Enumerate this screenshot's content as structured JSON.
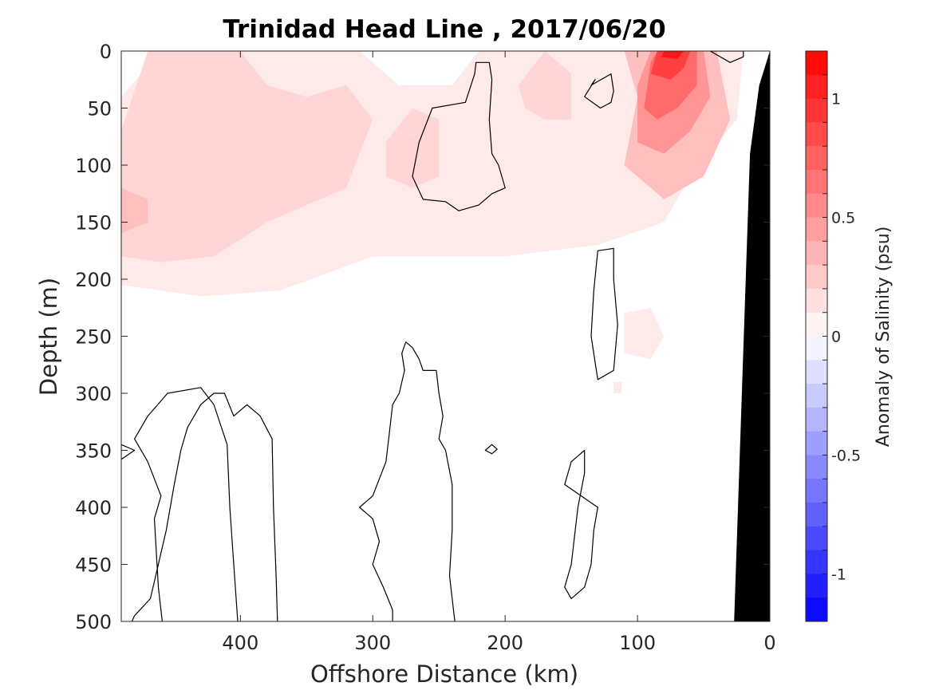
{
  "chart_data": {
    "type": "heatmap",
    "title": "Trinidad Head Line , 2017/06/20",
    "xlabel": "Offshore Distance (km)",
    "ylabel": "Depth (m)",
    "colorbar_label": "Anomaly of Salinity (psu)",
    "xlim": [
      490,
      0
    ],
    "ylim": [
      0,
      500
    ],
    "y_reversed": true,
    "x_reversed": true,
    "x_ticks": [
      400,
      300,
      200,
      100,
      0
    ],
    "y_ticks": [
      0,
      50,
      100,
      150,
      200,
      250,
      300,
      350,
      400,
      450,
      500
    ],
    "colorbar": {
      "range": [
        -1.2,
        1.2
      ],
      "step": 0.1,
      "ticks": [
        -1,
        -0.5,
        0,
        0.5,
        1
      ],
      "tick_labels": [
        "-1",
        "-0.5",
        "0",
        "0.5",
        "1"
      ],
      "colors": {
        "negative_max": "#0000ff",
        "zero": "#ffffff",
        "positive_max": "#ff0000"
      }
    },
    "anomaly_patches": [
      {
        "level": 0.1,
        "points": [
          [
            490,
            40
          ],
          [
            460,
            0
          ],
          [
            310,
            0
          ],
          [
            280,
            30
          ],
          [
            240,
            30
          ],
          [
            220,
            0
          ],
          [
            20,
            0
          ],
          [
            25,
            60
          ],
          [
            60,
            110
          ],
          [
            80,
            150
          ],
          [
            130,
            170
          ],
          [
            200,
            180
          ],
          [
            300,
            180
          ],
          [
            370,
            210
          ],
          [
            430,
            215
          ],
          [
            490,
            205
          ]
        ]
      },
      {
        "level": 0.2,
        "points": [
          [
            490,
            70
          ],
          [
            470,
            0
          ],
          [
            400,
            0
          ],
          [
            380,
            30
          ],
          [
            350,
            40
          ],
          [
            320,
            30
          ],
          [
            300,
            60
          ],
          [
            320,
            120
          ],
          [
            380,
            150
          ],
          [
            420,
            180
          ],
          [
            460,
            185
          ],
          [
            490,
            180
          ]
        ]
      },
      {
        "level": 0.2,
        "points": [
          [
            290,
            80
          ],
          [
            270,
            50
          ],
          [
            250,
            60
          ],
          [
            250,
            110
          ],
          [
            270,
            120
          ],
          [
            290,
            110
          ]
        ]
      },
      {
        "level": 0.2,
        "points": [
          [
            190,
            30
          ],
          [
            170,
            0
          ],
          [
            150,
            20
          ],
          [
            150,
            60
          ],
          [
            170,
            60
          ],
          [
            185,
            50
          ]
        ]
      },
      {
        "level": 0.3,
        "points": [
          [
            490,
            160
          ],
          [
            470,
            150
          ],
          [
            470,
            130
          ],
          [
            490,
            120
          ]
        ]
      },
      {
        "level": 0.3,
        "points": [
          [
            110,
            100
          ],
          [
            100,
            40
          ],
          [
            110,
            0
          ],
          [
            40,
            0
          ],
          [
            30,
            60
          ],
          [
            50,
            110
          ],
          [
            80,
            130
          ]
        ]
      },
      {
        "level": 0.5,
        "points": [
          [
            100,
            80
          ],
          [
            100,
            30
          ],
          [
            90,
            0
          ],
          [
            50,
            0
          ],
          [
            45,
            40
          ],
          [
            60,
            70
          ],
          [
            80,
            90
          ]
        ]
      },
      {
        "level": 0.7,
        "points": [
          [
            95,
            50
          ],
          [
            90,
            10
          ],
          [
            85,
            0
          ],
          [
            55,
            0
          ],
          [
            55,
            30
          ],
          [
            70,
            50
          ],
          [
            85,
            60
          ]
        ]
      },
      {
        "level": 0.9,
        "points": [
          [
            90,
            20
          ],
          [
            85,
            0
          ],
          [
            60,
            0
          ],
          [
            65,
            15
          ],
          [
            75,
            25
          ]
        ]
      },
      {
        "level": 1.1,
        "points": [
          [
            82,
            5
          ],
          [
            80,
            0
          ],
          [
            65,
            0
          ],
          [
            70,
            7
          ]
        ]
      },
      {
        "level": 0.1,
        "points": [
          [
            110,
            230
          ],
          [
            90,
            225
          ],
          [
            80,
            250
          ],
          [
            90,
            270
          ],
          [
            110,
            265
          ]
        ]
      },
      {
        "level": 0.1,
        "points": [
          [
            118,
            290
          ],
          [
            112,
            290
          ],
          [
            112,
            300
          ],
          [
            118,
            300
          ]
        ]
      }
    ],
    "zero_contours": [
      {
        "closed": true,
        "points": [
          [
            262,
            130
          ],
          [
            270,
            110
          ],
          [
            265,
            80
          ],
          [
            255,
            50
          ],
          [
            230,
            45
          ],
          [
            223,
            20
          ],
          [
            222,
            10
          ],
          [
            212,
            10
          ],
          [
            210,
            25
          ],
          [
            212,
            60
          ],
          [
            210,
            90
          ],
          [
            205,
            100
          ],
          [
            200,
            120
          ],
          [
            210,
            125
          ],
          [
            220,
            135
          ],
          [
            235,
            140
          ],
          [
            245,
            132
          ]
        ]
      },
      {
        "closed": true,
        "points": [
          [
            135,
            30
          ],
          [
            120,
            20
          ],
          [
            118,
            35
          ],
          [
            120,
            45
          ],
          [
            128,
            50
          ],
          [
            140,
            40
          ],
          [
            132,
            25
          ]
        ]
      },
      {
        "closed": true,
        "points": [
          [
            130,
            175
          ],
          [
            118,
            173
          ],
          [
            118,
            200
          ],
          [
            115,
            240
          ],
          [
            118,
            280
          ],
          [
            130,
            288
          ],
          [
            135,
            250
          ],
          [
            133,
            210
          ]
        ]
      },
      {
        "closed": false,
        "points": [
          [
            459,
            500
          ],
          [
            462,
            470
          ],
          [
            465,
            410
          ],
          [
            460,
            390
          ],
          [
            470,
            360
          ],
          [
            480,
            340
          ],
          [
            470,
            320
          ],
          [
            455,
            300
          ],
          [
            430,
            295
          ],
          [
            420,
            310
          ],
          [
            410,
            345
          ],
          [
            408,
            400
          ],
          [
            405,
            450
          ],
          [
            402,
            500
          ]
        ]
      },
      {
        "closed": false,
        "points": [
          [
            372,
            500
          ],
          [
            373,
            460
          ],
          [
            375,
            400
          ],
          [
            376,
            340
          ],
          [
            385,
            320
          ],
          [
            395,
            310
          ],
          [
            405,
            320
          ],
          [
            412,
            300
          ],
          [
            420,
            300
          ],
          [
            430,
            310
          ],
          [
            440,
            330
          ],
          [
            445,
            350
          ],
          [
            450,
            380
          ],
          [
            456,
            420
          ],
          [
            462,
            450
          ],
          [
            468,
            480
          ],
          [
            480,
            495
          ],
          [
            482,
            500
          ]
        ]
      },
      {
        "closed": false,
        "points": [
          [
            238,
            500
          ],
          [
            242,
            460
          ],
          [
            240,
            420
          ],
          [
            240,
            380
          ],
          [
            245,
            350
          ],
          [
            250,
            340
          ],
          [
            247,
            320
          ],
          [
            250,
            300
          ],
          [
            252,
            280
          ],
          [
            262,
            280
          ],
          [
            265,
            270
          ],
          [
            270,
            260
          ],
          [
            275,
            255
          ],
          [
            278,
            265
          ],
          [
            276,
            280
          ],
          [
            280,
            300
          ],
          [
            285,
            310
          ],
          [
            288,
            340
          ],
          [
            290,
            360
          ],
          [
            295,
            375
          ],
          [
            300,
            390
          ],
          [
            310,
            400
          ],
          [
            300,
            410
          ],
          [
            295,
            430
          ],
          [
            300,
            450
          ],
          [
            292,
            470
          ],
          [
            285,
            490
          ],
          [
            285,
            500
          ]
        ]
      },
      {
        "closed": true,
        "points": [
          [
            155,
            380
          ],
          [
            150,
            360
          ],
          [
            140,
            350
          ],
          [
            140,
            370
          ],
          [
            145,
            400
          ],
          [
            148,
            430
          ],
          [
            150,
            450
          ],
          [
            155,
            470
          ],
          [
            150,
            480
          ],
          [
            140,
            470
          ],
          [
            135,
            450
          ],
          [
            133,
            420
          ],
          [
            130,
            400
          ]
        ]
      },
      {
        "closed": true,
        "points": [
          [
            210,
            345
          ],
          [
            215,
            350
          ],
          [
            210,
            353
          ],
          [
            206,
            349
          ]
        ]
      },
      {
        "closed": true,
        "points": [
          [
            490,
            345
          ],
          [
            480,
            350
          ],
          [
            490,
            358
          ]
        ]
      },
      {
        "closed": true,
        "points": [
          [
            45,
            0
          ],
          [
            30,
            10
          ],
          [
            20,
            5
          ],
          [
            20,
            0
          ]
        ]
      }
    ],
    "bathymetry_mask": [
      [
        0,
        0
      ],
      [
        8,
        30
      ],
      [
        15,
        90
      ],
      [
        27,
        500
      ],
      [
        0,
        500
      ]
    ]
  }
}
